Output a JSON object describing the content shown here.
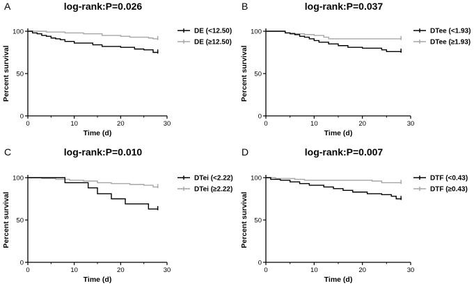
{
  "chart_data": [
    {
      "type": "line",
      "panel_letter": "A",
      "title": "log-rank:P=0.026",
      "xlabel": "Time (d)",
      "ylabel": "Percent survival",
      "xlim": [
        0,
        30
      ],
      "ylim": [
        0,
        100
      ],
      "xticks": [
        "0",
        "10",
        "20",
        "30"
      ],
      "yticks": [
        "0",
        "50",
        "100"
      ],
      "legend_position": "top-right",
      "series": [
        {
          "name": "DE (<12.50)",
          "color": "#000000",
          "x": [
            0,
            1,
            2,
            3,
            4,
            5,
            6,
            7,
            8,
            10,
            14,
            16,
            20,
            23,
            25,
            27,
            28
          ],
          "y": [
            100,
            98,
            97,
            95,
            94,
            92,
            91,
            90,
            88,
            86,
            84,
            82,
            81,
            79,
            78,
            75,
            76
          ]
        },
        {
          "name": "DE (≥12.50)",
          "color": "#a6a6a6",
          "x": [
            0,
            4,
            8,
            12,
            16,
            20,
            22,
            26,
            27,
            28
          ],
          "y": [
            100,
            99,
            98,
            97,
            95,
            94,
            93,
            92,
            91,
            92
          ]
        }
      ]
    },
    {
      "type": "line",
      "panel_letter": "B",
      "title": "log-rank:P=0.037",
      "xlabel": "Time (d)",
      "ylabel": "Percent survival",
      "xlim": [
        0,
        30
      ],
      "ylim": [
        0,
        100
      ],
      "xticks": [
        "0",
        "10",
        "20",
        "30"
      ],
      "yticks": [
        "0",
        "50",
        "100"
      ],
      "legend_position": "top-right",
      "series": [
        {
          "name": "DTee (<1.93)",
          "color": "#000000",
          "x": [
            0,
            4,
            5,
            6,
            7,
            8,
            9,
            10,
            11,
            13,
            15,
            17,
            20,
            24,
            25,
            28
          ],
          "y": [
            100,
            98,
            97,
            96,
            94,
            93,
            91,
            89,
            87,
            85,
            83,
            81,
            80,
            78,
            76,
            77
          ]
        },
        {
          "name": "DTee (≥1.93)",
          "color": "#a6a6a6",
          "x": [
            0,
            4,
            6,
            8,
            10,
            12,
            13,
            28
          ],
          "y": [
            100,
            98,
            97,
            96,
            95,
            93,
            91,
            92
          ]
        }
      ]
    },
    {
      "type": "line",
      "panel_letter": "C",
      "title": "log-rank:P=0.010",
      "xlabel": "Time (d)",
      "ylabel": "Percent survival",
      "xlim": [
        0,
        30
      ],
      "ylim": [
        0,
        100
      ],
      "xticks": [
        "0",
        "10",
        "20",
        "30"
      ],
      "yticks": [
        "0",
        "50",
        "100"
      ],
      "legend_position": "top-right",
      "series": [
        {
          "name": "DTei (<2.22)",
          "color": "#000000",
          "x": [
            0,
            8,
            13,
            15,
            18,
            21,
            26,
            28
          ],
          "y": [
            100,
            94,
            88,
            81,
            75,
            69,
            63,
            64
          ]
        },
        {
          "name": "DTei (≥2.22)",
          "color": "#a6a6a6",
          "x": [
            0,
            3,
            6,
            9,
            12,
            15,
            18,
            22,
            25,
            27,
            28
          ],
          "y": [
            100,
            99,
            98,
            97,
            96,
            94,
            93,
            92,
            91,
            89,
            90
          ]
        }
      ]
    },
    {
      "type": "line",
      "panel_letter": "D",
      "title": "log-rank:P=0.007",
      "xlabel": "Time (d)",
      "ylabel": "Percent survival",
      "xlim": [
        0,
        30
      ],
      "ylim": [
        0,
        100
      ],
      "xticks": [
        "0",
        "10",
        "20",
        "30"
      ],
      "yticks": [
        "0",
        "50",
        "100"
      ],
      "legend_position": "top-right",
      "series": [
        {
          "name": "DTF (<0.43)",
          "color": "#000000",
          "x": [
            0,
            1,
            3,
            5,
            7,
            9,
            12,
            14,
            16,
            18,
            21,
            24,
            26,
            27,
            28
          ],
          "y": [
            100,
            98,
            97,
            95,
            93,
            91,
            89,
            87,
            85,
            83,
            81,
            80,
            78,
            75,
            76
          ]
        },
        {
          "name": "DTF (≥0.43)",
          "color": "#a6a6a6",
          "x": [
            0,
            2,
            6,
            8,
            22,
            24,
            28
          ],
          "y": [
            100,
            99,
            98,
            97,
            96,
            94,
            95
          ]
        }
      ]
    }
  ]
}
